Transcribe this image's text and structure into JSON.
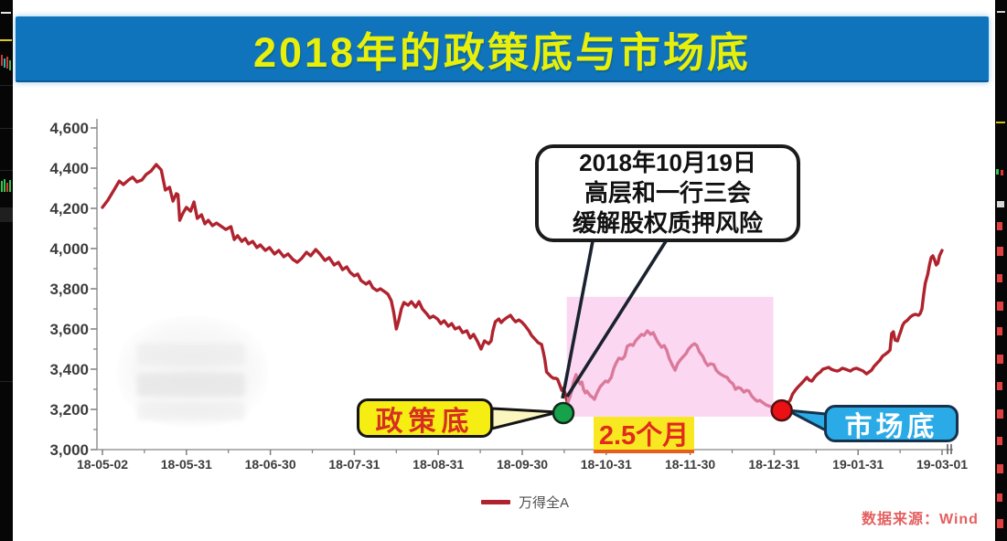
{
  "title": {
    "text": "2018年的政策底与市场底"
  },
  "annotation_bubble": {
    "lines": [
      "2018年10月19日",
      "高层和一行三会",
      "缓解股权质押风险"
    ]
  },
  "labels": {
    "policy_bottom": "政策底",
    "market_bottom": "市场底",
    "duration": "2.5个月"
  },
  "legend": {
    "series_label": "万得全A"
  },
  "source": {
    "text": "数据来源：Wind"
  },
  "colors": {
    "banner_blue": "#0f74bb",
    "title_yellow": "#e7ef0a",
    "line_red": "#b0232e",
    "highlight_pink": "#f8bae8",
    "policy_dot_green": "#16a24b",
    "market_dot_red": "#ea1014",
    "policy_label_yellow": "#f6ee12",
    "market_label_blue": "#2aabe8",
    "duration_bg_yellow": "#f8e822",
    "duration_text_red": "#e02b1d",
    "axis_gray": "#9a9a9a"
  },
  "chart_data": {
    "type": "line",
    "title": "2018年的政策底与市场底",
    "series_name": "万得全A",
    "xlabel": "",
    "ylabel": "",
    "grid": false,
    "legend_position": "bottom-center",
    "ylim": [
      3000,
      4600
    ],
    "y_ticks": [
      3000,
      3200,
      3400,
      3600,
      3800,
      4000,
      4200,
      4400,
      4600
    ],
    "x_tick_labels": [
      "18-05-02",
      "18-05-31",
      "18-06-30",
      "18-07-31",
      "18-08-31",
      "18-09-30",
      "18-10-31",
      "18-11-30",
      "18-12-31",
      "19-01-31",
      "19-03-01"
    ],
    "line_color": "#b0232e",
    "markers": [
      {
        "name": "policy-bottom",
        "t": 54.9,
        "value": 3182,
        "color": "#16a24b",
        "date_label": "2018年10月19日"
      },
      {
        "name": "market-bottom",
        "t": 80.9,
        "value": 3195,
        "color": "#ea1014"
      }
    ],
    "highlight_region": {
      "t_start": 55.3,
      "t_end": 79.9,
      "v_top": 3760,
      "v_bottom": 3164,
      "color": "#f8bae8",
      "label": "2.5个月"
    },
    "points": [
      [
        0,
        4205
      ],
      [
        0.65,
        4241
      ],
      [
        1.3,
        4286
      ],
      [
        2,
        4336
      ],
      [
        2.5,
        4318
      ],
      [
        3.1,
        4341
      ],
      [
        3.6,
        4355
      ],
      [
        4.1,
        4332
      ],
      [
        4.7,
        4341
      ],
      [
        5.2,
        4368
      ],
      [
        5.8,
        4386
      ],
      [
        6.4,
        4418
      ],
      [
        7,
        4391
      ],
      [
        7.5,
        4291
      ],
      [
        8,
        4305
      ],
      [
        8.4,
        4236
      ],
      [
        8.8,
        4273
      ],
      [
        9,
        4268
      ],
      [
        9.2,
        4141
      ],
      [
        9.6,
        4177
      ],
      [
        10,
        4205
      ],
      [
        10.5,
        4186
      ],
      [
        10.9,
        4232
      ],
      [
        11.3,
        4150
      ],
      [
        11.8,
        4168
      ],
      [
        12.2,
        4123
      ],
      [
        12.6,
        4141
      ],
      [
        13.1,
        4114
      ],
      [
        13.6,
        4127
      ],
      [
        14.2,
        4109
      ],
      [
        14.7,
        4095
      ],
      [
        15.3,
        4109
      ],
      [
        15.7,
        4045
      ],
      [
        16.1,
        4064
      ],
      [
        16.6,
        4036
      ],
      [
        17,
        4050
      ],
      [
        17.4,
        4023
      ],
      [
        17.9,
        4036
      ],
      [
        18.4,
        4005
      ],
      [
        18.8,
        4018
      ],
      [
        19.4,
        3991
      ],
      [
        19.9,
        4005
      ],
      [
        20.5,
        3973
      ],
      [
        21,
        3991
      ],
      [
        21.6,
        3959
      ],
      [
        22.1,
        3973
      ],
      [
        22.7,
        3945
      ],
      [
        23.2,
        3932
      ],
      [
        23.7,
        3950
      ],
      [
        24.3,
        3982
      ],
      [
        24.8,
        3964
      ],
      [
        25.4,
        3995
      ],
      [
        25.9,
        3973
      ],
      [
        26.5,
        3941
      ],
      [
        27,
        3955
      ],
      [
        27.6,
        3918
      ],
      [
        28.1,
        3932
      ],
      [
        28.6,
        3895
      ],
      [
        29.1,
        3909
      ],
      [
        29.5,
        3882
      ],
      [
        30,
        3864
      ],
      [
        30.4,
        3873
      ],
      [
        30.8,
        3841
      ],
      [
        31.4,
        3823
      ],
      [
        31.8,
        3836
      ],
      [
        32.2,
        3805
      ],
      [
        32.7,
        3791
      ],
      [
        33.1,
        3800
      ],
      [
        33.6,
        3786
      ],
      [
        34,
        3773
      ],
      [
        34.4,
        3741
      ],
      [
        34.7,
        3682
      ],
      [
        35,
        3600
      ],
      [
        35.3,
        3645
      ],
      [
        35.6,
        3700
      ],
      [
        35.9,
        3732
      ],
      [
        36.4,
        3718
      ],
      [
        36.8,
        3736
      ],
      [
        37.3,
        3709
      ],
      [
        37.7,
        3736
      ],
      [
        38.1,
        3700
      ],
      [
        38.6,
        3677
      ],
      [
        39,
        3655
      ],
      [
        39.4,
        3664
      ],
      [
        39.9,
        3650
      ],
      [
        40.3,
        3627
      ],
      [
        40.7,
        3641
      ],
      [
        41.2,
        3614
      ],
      [
        41.6,
        3627
      ],
      [
        42,
        3600
      ],
      [
        42.5,
        3609
      ],
      [
        42.9,
        3582
      ],
      [
        43.4,
        3591
      ],
      [
        43.8,
        3555
      ],
      [
        44.2,
        3573
      ],
      [
        44.7,
        3536
      ],
      [
        45.1,
        3500
      ],
      [
        45.5,
        3541
      ],
      [
        46,
        3527
      ],
      [
        46.3,
        3541
      ],
      [
        46.5,
        3591
      ],
      [
        46.8,
        3636
      ],
      [
        47.2,
        3650
      ],
      [
        47.5,
        3632
      ],
      [
        47.8,
        3645
      ],
      [
        48.1,
        3655
      ],
      [
        48.6,
        3668
      ],
      [
        48.9,
        3650
      ],
      [
        49.2,
        3636
      ],
      [
        49.6,
        3645
      ],
      [
        49.9,
        3636
      ],
      [
        50.3,
        3618
      ],
      [
        50.8,
        3591
      ],
      [
        51.1,
        3568
      ],
      [
        51.5,
        3550
      ],
      [
        51.9,
        3532
      ],
      [
        52.3,
        3523
      ],
      [
        52.5,
        3486
      ],
      [
        52.7,
        3445
      ],
      [
        52.9,
        3386
      ],
      [
        53.2,
        3373
      ],
      [
        53.4,
        3364
      ],
      [
        53.7,
        3355
      ],
      [
        54,
        3355
      ],
      [
        54.2,
        3350
      ],
      [
        54.5,
        3318
      ],
      [
        54.7,
        3295
      ],
      [
        54.9,
        3305
      ],
      [
        55.1,
        3282
      ],
      [
        55.3,
        3245
      ],
      [
        55.4,
        3232
      ],
      [
        55.7,
        3264
      ],
      [
        55.9,
        3295
      ],
      [
        56.1,
        3336
      ],
      [
        56.4,
        3373
      ],
      [
        56.6,
        3350
      ],
      [
        56.9,
        3327
      ],
      [
        57.1,
        3336
      ],
      [
        57.3,
        3300
      ],
      [
        57.5,
        3282
      ],
      [
        57.7,
        3291
      ],
      [
        58.1,
        3268
      ],
      [
        58.4,
        3259
      ],
      [
        58.6,
        3250
      ],
      [
        58.9,
        3282
      ],
      [
        59.3,
        3314
      ],
      [
        59.6,
        3327
      ],
      [
        59.9,
        3341
      ],
      [
        60.2,
        3336
      ],
      [
        60.6,
        3359
      ],
      [
        60.9,
        3405
      ],
      [
        61.2,
        3432
      ],
      [
        61.5,
        3455
      ],
      [
        61.9,
        3450
      ],
      [
        62.2,
        3464
      ],
      [
        62.5,
        3514
      ],
      [
        62.9,
        3523
      ],
      [
        63.2,
        3518
      ],
      [
        63.5,
        3541
      ],
      [
        63.8,
        3555
      ],
      [
        64.2,
        3573
      ],
      [
        64.5,
        3568
      ],
      [
        64.9,
        3591
      ],
      [
        65.3,
        3573
      ],
      [
        65.6,
        3582
      ],
      [
        65.9,
        3555
      ],
      [
        66.2,
        3532
      ],
      [
        66.6,
        3509
      ],
      [
        66.9,
        3518
      ],
      [
        67.2,
        3495
      ],
      [
        67.5,
        3455
      ],
      [
        67.9,
        3418
      ],
      [
        68.2,
        3395
      ],
      [
        68.5,
        3427
      ],
      [
        68.8,
        3445
      ],
      [
        69.2,
        3464
      ],
      [
        69.5,
        3477
      ],
      [
        69.8,
        3500
      ],
      [
        70.2,
        3518
      ],
      [
        70.5,
        3527
      ],
      [
        70.8,
        3518
      ],
      [
        71.1,
        3486
      ],
      [
        71.5,
        3464
      ],
      [
        71.8,
        3436
      ],
      [
        72.1,
        3418
      ],
      [
        72.4,
        3427
      ],
      [
        72.8,
        3423
      ],
      [
        73.1,
        3395
      ],
      [
        73.4,
        3382
      ],
      [
        73.7,
        3373
      ],
      [
        74.1,
        3364
      ],
      [
        74.4,
        3359
      ],
      [
        74.7,
        3341
      ],
      [
        75.1,
        3327
      ],
      [
        75.4,
        3300
      ],
      [
        75.7,
        3309
      ],
      [
        76,
        3305
      ],
      [
        76.4,
        3286
      ],
      [
        76.7,
        3295
      ],
      [
        77,
        3291
      ],
      [
        77.3,
        3268
      ],
      [
        77.7,
        3250
      ],
      [
        78,
        3241
      ],
      [
        78.3,
        3245
      ],
      [
        78.6,
        3236
      ],
      [
        79,
        3223
      ],
      [
        79.3,
        3218
      ],
      [
        79.6,
        3214
      ],
      [
        79.9,
        3209
      ],
      [
        80.3,
        3200
      ],
      [
        80.6,
        3195
      ],
      [
        80.9,
        3200
      ],
      [
        81.3,
        3218
      ],
      [
        81.6,
        3232
      ],
      [
        81.9,
        3245
      ],
      [
        82.2,
        3277
      ],
      [
        82.6,
        3300
      ],
      [
        82.9,
        3314
      ],
      [
        83.2,
        3327
      ],
      [
        83.6,
        3345
      ],
      [
        83.9,
        3359
      ],
      [
        84.2,
        3345
      ],
      [
        84.5,
        3341
      ],
      [
        84.9,
        3364
      ],
      [
        85.2,
        3377
      ],
      [
        85.5,
        3386
      ],
      [
        85.8,
        3400
      ],
      [
        86.2,
        3405
      ],
      [
        86.5,
        3409
      ],
      [
        86.8,
        3400
      ],
      [
        87.1,
        3395
      ],
      [
        87.5,
        3391
      ],
      [
        87.8,
        3395
      ],
      [
        88.1,
        3405
      ],
      [
        88.5,
        3400
      ],
      [
        88.8,
        3395
      ],
      [
        89.1,
        3391
      ],
      [
        89.4,
        3400
      ],
      [
        89.8,
        3405
      ],
      [
        90.1,
        3400
      ],
      [
        90.6,
        3391
      ],
      [
        91,
        3377
      ],
      [
        91.3,
        3386
      ],
      [
        91.6,
        3395
      ],
      [
        91.9,
        3414
      ],
      [
        92.3,
        3432
      ],
      [
        92.6,
        3445
      ],
      [
        92.9,
        3464
      ],
      [
        93.2,
        3473
      ],
      [
        93.6,
        3486
      ],
      [
        93.8,
        3495
      ],
      [
        94,
        3577
      ],
      [
        94.2,
        3586
      ],
      [
        94.4,
        3545
      ],
      [
        94.7,
        3541
      ],
      [
        94.9,
        3568
      ],
      [
        95.1,
        3591
      ],
      [
        95.3,
        3618
      ],
      [
        95.5,
        3632
      ],
      [
        95.9,
        3645
      ],
      [
        96.2,
        3659
      ],
      [
        96.5,
        3668
      ],
      [
        96.8,
        3673
      ],
      [
        97.2,
        3668
      ],
      [
        97.4,
        3677
      ],
      [
        97.6,
        3700
      ],
      [
        97.8,
        3768
      ],
      [
        98,
        3827
      ],
      [
        98.3,
        3873
      ],
      [
        98.5,
        3918
      ],
      [
        98.7,
        3955
      ],
      [
        98.9,
        3964
      ],
      [
        99.1,
        3945
      ],
      [
        99.3,
        3918
      ],
      [
        99.5,
        3927
      ],
      [
        99.7,
        3964
      ],
      [
        100,
        3991
      ]
    ]
  }
}
